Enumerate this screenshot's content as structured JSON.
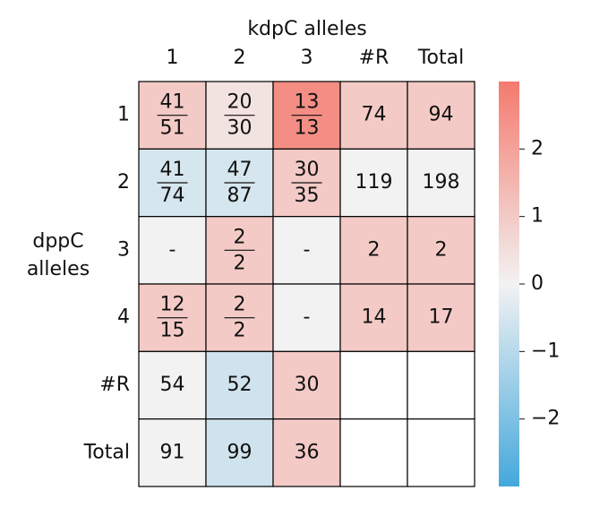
{
  "chart_data": {
    "type": "heatmap",
    "xlabel": "kdpC alleles",
    "ylabel": [
      "dppC",
      "alleles"
    ],
    "columns": [
      "1",
      "2",
      "3",
      "#R",
      "Total"
    ],
    "rows": [
      "1",
      "2",
      "3",
      "4",
      "#R",
      "Total"
    ],
    "values": [
      [
        1,
        0.4,
        2.5,
        1,
        1
      ],
      [
        -0.5,
        -0.5,
        1,
        0,
        0
      ],
      [
        0,
        1,
        0,
        1,
        1
      ],
      [
        1,
        1,
        0,
        1,
        1
      ],
      [
        0,
        -0.6,
        1,
        null,
        null
      ],
      [
        0,
        -0.6,
        1,
        null,
        null
      ]
    ],
    "annotations": [
      [
        {
          "num": 41,
          "den": 51
        },
        {
          "num": 20,
          "den": 30
        },
        {
          "num": 13,
          "den": 13
        },
        74,
        94
      ],
      [
        {
          "num": 41,
          "den": 74
        },
        {
          "num": 47,
          "den": 87
        },
        {
          "num": 30,
          "den": 35
        },
        119,
        198
      ],
      [
        "-",
        {
          "num": 2,
          "den": 2
        },
        "-",
        2,
        2
      ],
      [
        {
          "num": 12,
          "den": 15
        },
        {
          "num": 2,
          "den": 2
        },
        "-",
        14,
        17
      ],
      [
        54,
        52,
        30,
        null,
        null
      ],
      [
        91,
        99,
        36,
        null,
        null
      ]
    ],
    "colormap": [
      "#44a8dc",
      "#f2f2f2",
      "#f47a6e"
    ],
    "clim": [
      -3,
      3
    ],
    "cticks": [
      {
        "value": -2,
        "label": "−2"
      },
      {
        "value": -1,
        "label": "−1"
      },
      0,
      1,
      2
    ]
  }
}
